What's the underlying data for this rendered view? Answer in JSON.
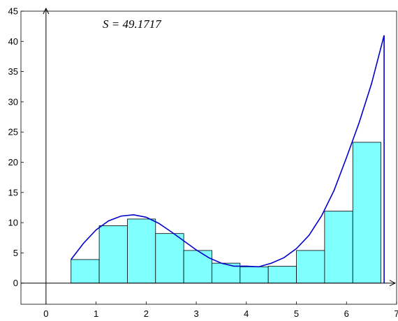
{
  "chart_data": {
    "type": "bar",
    "title": "",
    "xlabel": "",
    "ylabel": "",
    "annotation": "S = 49.1717",
    "xlim": [
      -0.5,
      7
    ],
    "ylim": [
      -3.5,
      45
    ],
    "xticks": [
      0,
      1,
      2,
      3,
      4,
      5,
      6,
      7
    ],
    "yticks": [
      0,
      5,
      10,
      15,
      20,
      25,
      30,
      35,
      40,
      45
    ],
    "grid": false,
    "bar_width": 0.5625,
    "bars": [
      {
        "left": 0.5,
        "value": 3.9
      },
      {
        "left": 1.0625,
        "value": 9.5
      },
      {
        "left": 1.625,
        "value": 10.6
      },
      {
        "left": 2.1875,
        "value": 8.2
      },
      {
        "left": 2.75,
        "value": 5.4
      },
      {
        "left": 3.3125,
        "value": 3.3
      },
      {
        "left": 3.875,
        "value": 2.7
      },
      {
        "left": 4.4375,
        "value": 2.8
      },
      {
        "left": 5.0,
        "value": 5.4
      },
      {
        "left": 5.5625,
        "value": 11.9
      },
      {
        "left": 6.125,
        "value": 23.3
      }
    ],
    "curve": {
      "x": [
        0.5,
        0.75,
        1.0,
        1.25,
        1.5,
        1.75,
        2.0,
        2.25,
        2.5,
        2.75,
        3.0,
        3.25,
        3.5,
        3.75,
        4.0,
        4.25,
        4.5,
        4.75,
        5.0,
        5.25,
        5.5,
        5.75,
        6.0,
        6.25,
        6.5,
        6.75
      ],
      "y": [
        3.9,
        6.6,
        8.8,
        10.3,
        11.1,
        11.3,
        10.9,
        9.9,
        8.5,
        7.0,
        5.5,
        4.2,
        3.3,
        2.8,
        2.8,
        2.7,
        3.3,
        4.2,
        5.7,
        7.9,
        11.1,
        15.3,
        20.8,
        26.5,
        33.0,
        41.0
      ]
    },
    "colors": {
      "bar_fill": "#80ffff",
      "bar_stroke": "#000000",
      "curve": "#0000cc",
      "axes": "#000000"
    }
  }
}
